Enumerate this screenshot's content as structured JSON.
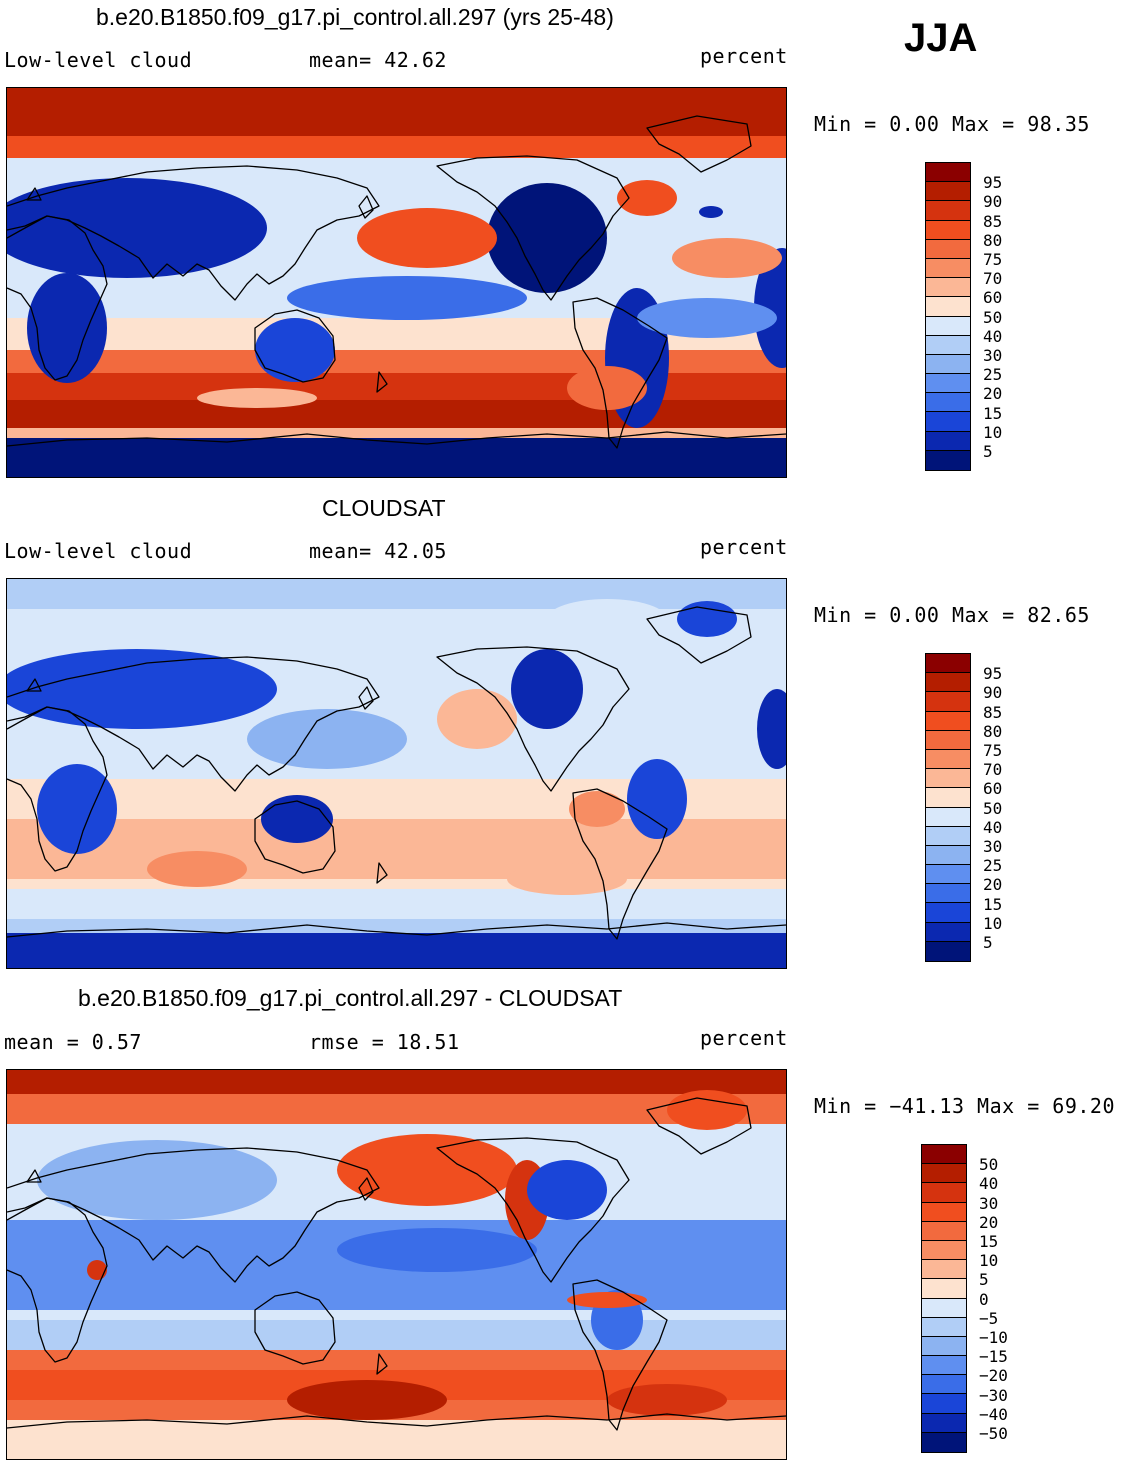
{
  "season": "JJA",
  "panels": [
    {
      "id": "model",
      "title": "b.e20.B1850.f09_g17.pi_control.all.297 (yrs 25-48)",
      "left_label": "Low-level cloud",
      "stat1": "mean=   42.62",
      "units": "percent",
      "minmax": "Min =    0.00 Max =   98.35",
      "legend_labels": [
        "95",
        "90",
        "85",
        "80",
        "75",
        "70",
        "60",
        "50",
        "40",
        "30",
        "25",
        "20",
        "15",
        "10",
        "5"
      ],
      "pattern": "model"
    },
    {
      "id": "obs",
      "title": "CLOUDSAT",
      "left_label": "Low-level cloud",
      "stat1": "mean=   42.05",
      "units": "percent",
      "minmax": "Min =    0.00 Max =   82.65",
      "legend_labels": [
        "95",
        "90",
        "85",
        "80",
        "75",
        "70",
        "60",
        "50",
        "40",
        "30",
        "25",
        "20",
        "15",
        "10",
        "5"
      ],
      "pattern": "obs"
    },
    {
      "id": "diff",
      "title": "b.e20.B1850.f09_g17.pi_control.all.297 - CLOUDSAT",
      "left_label": "mean =    0.57",
      "stat1": "rmse =   18.51",
      "units": "percent",
      "minmax": "Min = −41.13 Max =   69.20",
      "legend_labels": [
        "50",
        "40",
        "30",
        "20",
        "15",
        "10",
        "5",
        "0",
        "−5",
        "−10",
        "−15",
        "−20",
        "−30",
        "−40",
        "−50"
      ],
      "pattern": "diff"
    }
  ],
  "colors": {
    "palette": [
      "#8b0000",
      "#b41e00",
      "#d5330f",
      "#f04e1f",
      "#f26a3e",
      "#f78d63",
      "#fbb796",
      "#fde2cf",
      "#d9e8fa",
      "#b1cef6",
      "#8cb3f1",
      "#5f8ff0",
      "#3a6de8",
      "#1a45d8",
      "#0b28b0",
      "#001479"
    ]
  }
}
